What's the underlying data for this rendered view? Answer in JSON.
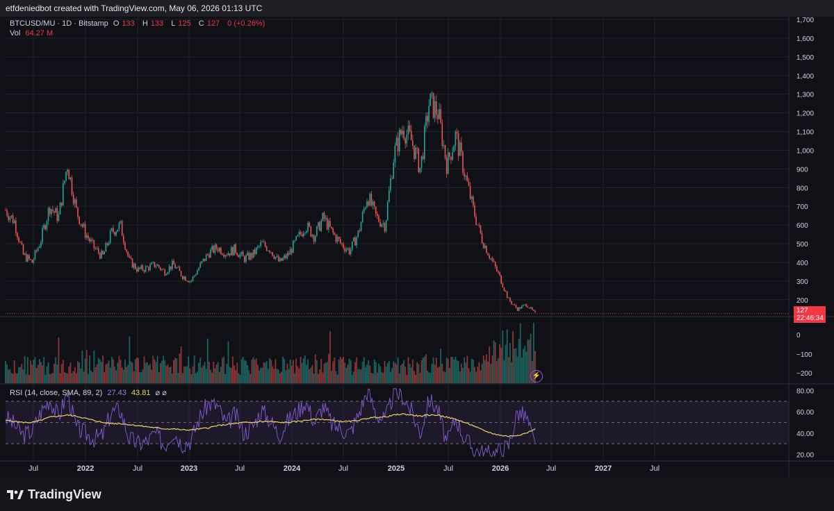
{
  "header": {
    "attribution": "etfdeniedbot created with TradingView.com, May 06, 2026 01:13 UTC"
  },
  "legend": {
    "symbol": "BTCUSD/MU · 1D · Bitstamp",
    "o_label": "O",
    "o_value": "133",
    "h_label": "H",
    "h_value": "133",
    "l_label": "L",
    "l_value": "125",
    "c_label": "C",
    "c_value": "127",
    "change": "0 (+0.26%)",
    "vol_label": "Vol",
    "vol_value": "64.27 M"
  },
  "rsi_legend": {
    "label": "RSI (14, close, SMA, 89, 2)",
    "rsi_value": "27.43",
    "sma_value": "43.81",
    "icons": "⌀ ⌀"
  },
  "price_badge": {
    "price": "127",
    "countdown": "22:46:34"
  },
  "brand": {
    "name": "TradingView"
  },
  "colors": {
    "up": "#26a69a",
    "down": "#ef5350",
    "rsi": "#7e57c2",
    "rsi_sma": "#f0d36b",
    "bg": "#101116",
    "badge": "#f23645"
  },
  "chart_data": [
    {
      "type": "line",
      "title": "BTCUSD/MU · 1D · Bitstamp",
      "y_axis_ticks": [
        "200",
        "300",
        "400",
        "500",
        "600",
        "700",
        "800",
        "900",
        "1,000",
        "1,100",
        "1,200",
        "1,300",
        "1,400",
        "1,500",
        "1,600",
        "1,700"
      ],
      "ylim": [
        125,
        1700
      ],
      "x_axis_ticks": [
        "Jul",
        "2022",
        "Jul",
        "2023",
        "Jul",
        "2024",
        "Jul",
        "2025",
        "Jul",
        "2026",
        "Jul",
        "2027",
        "Jul"
      ],
      "x": [
        "2021-05",
        "2021-06",
        "2021-07",
        "2021-08",
        "2021-09",
        "2021-10",
        "2021-11",
        "2021-12",
        "2022-01",
        "2022-02",
        "2022-03",
        "2022-04",
        "2022-05",
        "2022-06",
        "2022-07",
        "2022-08",
        "2022-09",
        "2022-10",
        "2022-11",
        "2022-12",
        "2023-01",
        "2023-02",
        "2023-03",
        "2023-04",
        "2023-05",
        "2023-06",
        "2023-07",
        "2023-08",
        "2023-09",
        "2023-10",
        "2023-11",
        "2023-12",
        "2024-01",
        "2024-02",
        "2024-03",
        "2024-04",
        "2024-05",
        "2024-06",
        "2024-07",
        "2024-08",
        "2024-09",
        "2024-10",
        "2024-11",
        "2024-12",
        "2025-01",
        "2025-02",
        "2025-03",
        "2025-04",
        "2025-05",
        "2025-06",
        "2025-07",
        "2025-08",
        "2025-09",
        "2025-10",
        "2025-11",
        "2025-12",
        "2026-01",
        "2026-02",
        "2026-03",
        "2026-04",
        "2026-05"
      ],
      "close": [
        680,
        620,
        440,
        400,
        520,
        700,
        640,
        930,
        680,
        560,
        480,
        430,
        560,
        600,
        410,
        360,
        370,
        390,
        350,
        390,
        330,
        300,
        380,
        450,
        480,
        450,
        470,
        420,
        440,
        500,
        470,
        400,
        440,
        520,
        600,
        540,
        640,
        560,
        500,
        460,
        560,
        760,
        640,
        600,
        980,
        1120,
        1050,
        900,
        1260,
        1200,
        920,
        1080,
        880,
        680,
        520,
        420,
        320,
        200,
        150,
        175,
        127
      ],
      "current_price": 127
    },
    {
      "type": "bar",
      "title": "Vol",
      "y_axis_ticks": [
        "0",
        "−100",
        "−200"
      ],
      "last_value": "64.27 M"
    },
    {
      "type": "line",
      "title": "RSI (14, close, SMA, 89, 2)",
      "y_axis_ticks": [
        "80.00",
        "60.00",
        "40.00",
        "20.00"
      ],
      "ylim": [
        15,
        85
      ],
      "bands": [
        70,
        50,
        30
      ],
      "series": [
        {
          "name": "RSI",
          "values": [
            55,
            48,
            38,
            42,
            60,
            72,
            55,
            78,
            45,
            40,
            35,
            38,
            60,
            62,
            35,
            30,
            32,
            40,
            28,
            42,
            30,
            33,
            55,
            68,
            66,
            48,
            58,
            40,
            46,
            62,
            52,
            38,
            52,
            60,
            70,
            50,
            66,
            48,
            44,
            40,
            58,
            80,
            58,
            52,
            78,
            75,
            60,
            40,
            72,
            62,
            30,
            55,
            35,
            25,
            22,
            20,
            24,
            28,
            60,
            55,
            27.43
          ]
        },
        {
          "name": "SMA",
          "values": [
            52,
            51,
            50,
            50,
            52,
            55,
            56,
            57,
            56,
            54,
            52,
            50,
            49,
            49,
            48,
            47,
            46,
            45,
            44,
            44,
            43,
            43,
            44,
            45,
            47,
            48,
            49,
            50,
            50,
            51,
            51,
            50,
            50,
            51,
            52,
            53,
            53,
            52,
            51,
            51,
            52,
            54,
            55,
            55,
            57,
            58,
            57,
            56,
            57,
            57,
            55,
            53,
            50,
            47,
            43,
            40,
            38,
            37,
            38,
            40,
            43.81
          ]
        }
      ],
      "last_values": {
        "RSI": 27.43,
        "SMA": 43.81
      }
    }
  ]
}
